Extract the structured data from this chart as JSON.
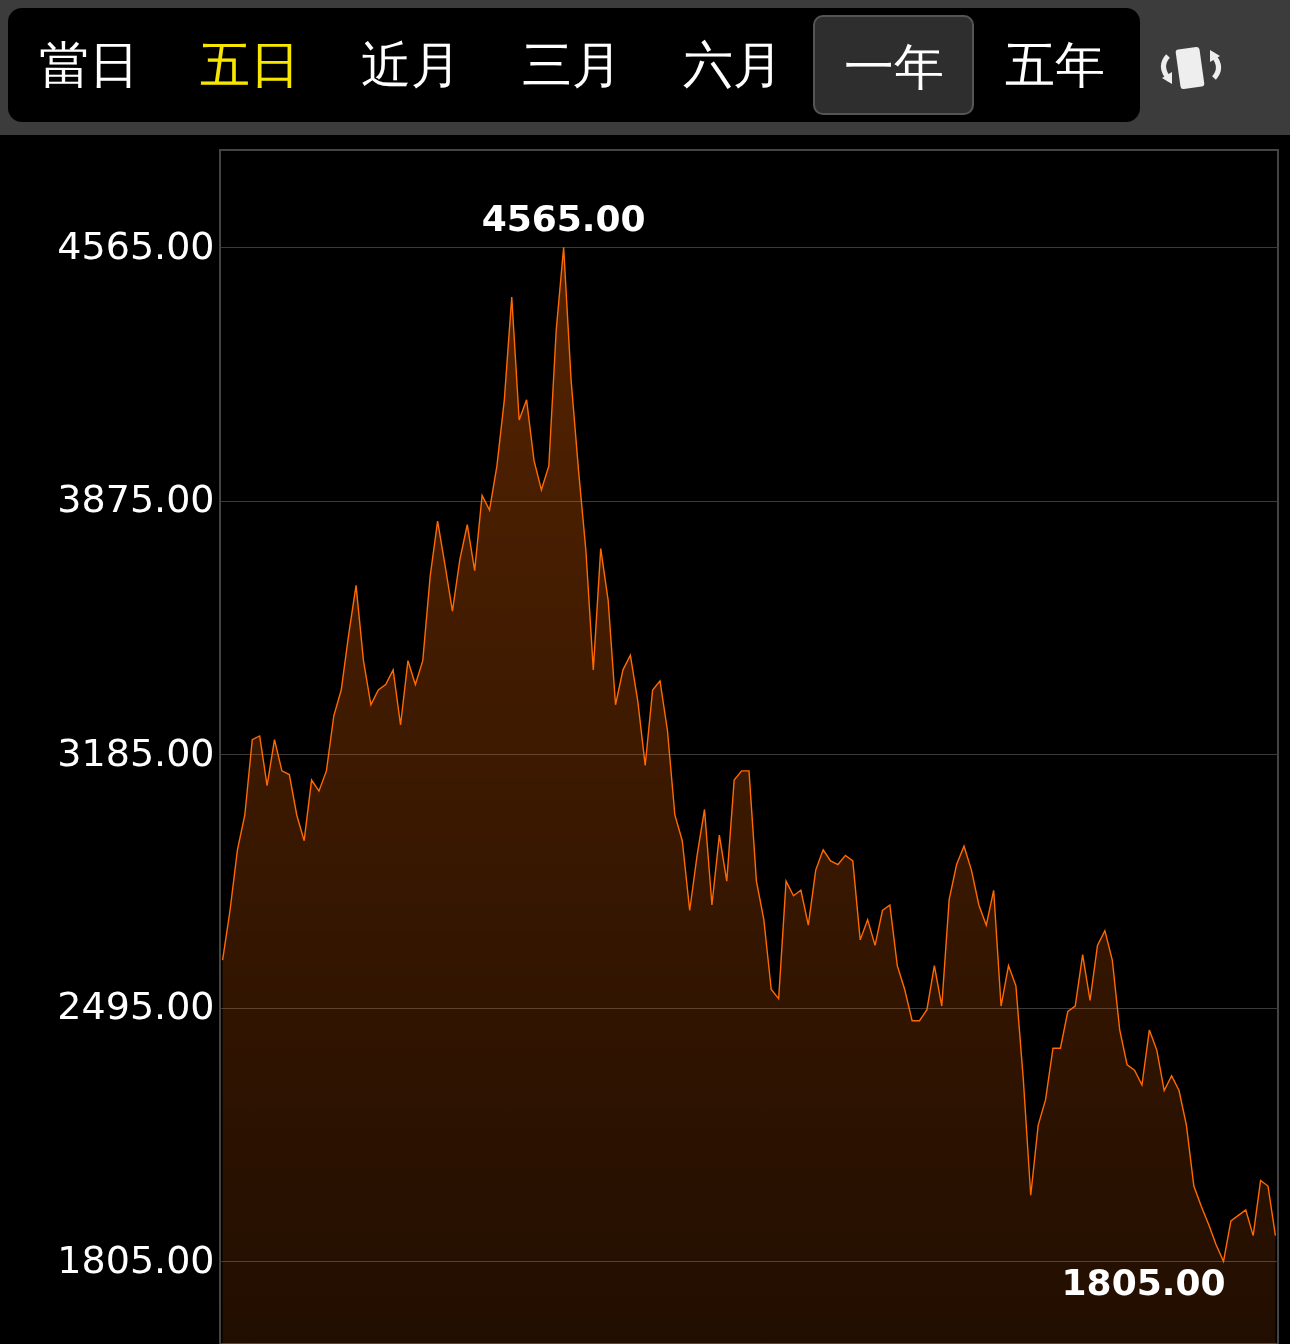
{
  "chart_data": {
    "type": "area",
    "categories": [
      null,
      null,
      null,
      null,
      null,
      null,
      null,
      null,
      null,
      null,
      null,
      null,
      null,
      null,
      null,
      null,
      null,
      null,
      null,
      null,
      null,
      null,
      null,
      null,
      null,
      null,
      null,
      null,
      null,
      null,
      null,
      null,
      null,
      null,
      null,
      null,
      null,
      null,
      null,
      null,
      null,
      null,
      null,
      null,
      null,
      null,
      null,
      null,
      null,
      null,
      null,
      null,
      null,
      null,
      null,
      null,
      null,
      null,
      null,
      null,
      null,
      null,
      null,
      null,
      null,
      null,
      null,
      null,
      null,
      null,
      null,
      null,
      null,
      null,
      null,
      null,
      null,
      null,
      null,
      null,
      null,
      null,
      null,
      null,
      null,
      null,
      null,
      null,
      null,
      null,
      null,
      null,
      null,
      null,
      null,
      null,
      null,
      null,
      null,
      null,
      null,
      null,
      null,
      null,
      null,
      null,
      null,
      null,
      null,
      null,
      null,
      null,
      null,
      null,
      null,
      null,
      null,
      null,
      null,
      null,
      null,
      null,
      null,
      null,
      null,
      null,
      null,
      null,
      null,
      null,
      null,
      null,
      null,
      null,
      null,
      null,
      null,
      null,
      null,
      null,
      null,
      null,
      null
    ],
    "series": [
      {
        "color": "#ff6a00",
        "values": [
          2625,
          2760,
          2925,
          3020,
          3225,
          3235,
          3100,
          3225,
          3140,
          3130,
          3020,
          2950,
          3115,
          3085,
          3140,
          3290,
          3360,
          3510,
          3645,
          3440,
          3320,
          3360,
          3375,
          3415,
          3265,
          3440,
          3375,
          3440,
          3670,
          3820,
          3700,
          3575,
          3715,
          3810,
          3685,
          3890,
          3850,
          3970,
          4150,
          4430,
          4095,
          4150,
          3985,
          3905,
          3970,
          4340,
          4565,
          4205,
          3960,
          3740,
          3415,
          3745,
          3605,
          3320,
          3415,
          3455,
          3330,
          3155,
          3360,
          3385,
          3250,
          3020,
          2950,
          2760,
          2910,
          3035,
          2775,
          2965,
          2840,
          3115,
          3140,
          3140,
          2840,
          2735,
          2545,
          2520,
          2840,
          2800,
          2815,
          2720,
          2870,
          2925,
          2895,
          2885,
          2910,
          2895,
          2680,
          2735,
          2665,
          2760,
          2775,
          2610,
          2545,
          2460,
          2460,
          2490,
          2610,
          2500,
          2790,
          2885,
          2935,
          2870,
          2775,
          2720,
          2815,
          2500,
          2610,
          2555,
          2300,
          1985,
          2175,
          2245,
          2385,
          2385,
          2485,
          2500,
          2640,
          2515,
          2665,
          2705,
          2625,
          2435,
          2340,
          2325,
          2285,
          2435,
          2380,
          2270,
          2310,
          2270,
          2175,
          2010,
          1955,
          1905,
          1850,
          1805,
          1915,
          1930,
          1945,
          1875,
          2025,
          2010,
          1875
        ]
      }
    ],
    "ylim": [
      1580,
      4830
    ],
    "yticks": [
      {
        "value": 1805,
        "label": "1805.00"
      },
      {
        "value": 2495,
        "label": "2495.00"
      },
      {
        "value": 3185,
        "label": "3185.00"
      },
      {
        "value": 3875,
        "label": "3875.00"
      },
      {
        "value": 4565,
        "label": "4565.00"
      }
    ],
    "grid": "y",
    "annotations": [
      "當日",
      "五日",
      "近月",
      "三月",
      "六月",
      "一年",
      "五年",
      {
        "text": "4565.00",
        "y": 4565
      },
      "1805.00"
    ]
  }
}
